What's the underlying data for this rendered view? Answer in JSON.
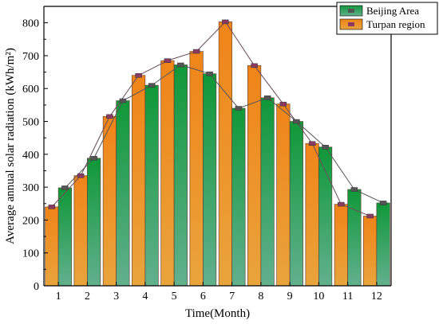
{
  "chart_data": {
    "type": "bar",
    "xlabel": "Time(Month)",
    "ylabel": "Average annual solar radiation (kWh/m²)",
    "categories": [
      "1",
      "2",
      "3",
      "4",
      "5",
      "6",
      "7",
      "8",
      "9",
      "10",
      "11",
      "12"
    ],
    "ylim": [
      0,
      850
    ],
    "yticks": [
      0,
      100,
      200,
      300,
      400,
      500,
      600,
      700,
      800
    ],
    "grid": false,
    "legend_position": "top-right",
    "series": [
      {
        "name": "Turpan region",
        "color_top": "#f08a20",
        "color_bottom": "#e8a838",
        "marker_color": "#8b3a62",
        "values": [
          240,
          335,
          515,
          640,
          685,
          713,
          803,
          670,
          553,
          433,
          248,
          212
        ]
      },
      {
        "name": "Beijing Area",
        "color_top": "#139a3c",
        "color_bottom": "#5fae8a",
        "marker_color": "#555555",
        "values": [
          298,
          388,
          563,
          610,
          672,
          645,
          540,
          572,
          500,
          422,
          293,
          252
        ]
      }
    ]
  }
}
